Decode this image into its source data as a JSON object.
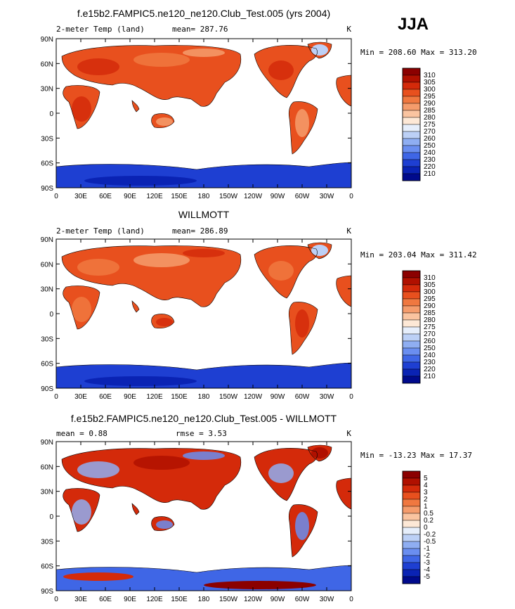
{
  "season": "JJA",
  "chart_data": [
    {
      "type": "heatmap",
      "title": "f.e15b2.FAMPIC5.ne120_ne120.Club_Test.005 (yrs 2004)",
      "left_label": "2-meter Temp (land)",
      "center_label": "mean= 287.76",
      "right_label": "K",
      "stats": "Min = 208.60 Max = 313.20",
      "x_ticks": [
        "0",
        "30E",
        "60E",
        "90E",
        "120E",
        "150E",
        "180",
        "150W",
        "120W",
        "90W",
        "60W",
        "30W",
        "0"
      ],
      "y_ticks": [
        "90N",
        "60N",
        "30N",
        "0",
        "30S",
        "60S",
        "90S"
      ],
      "colorbar": {
        "labels": [
          "310",
          "305",
          "300",
          "295",
          "290",
          "285",
          "280",
          "275",
          "270",
          "260",
          "250",
          "240",
          "230",
          "220",
          "210"
        ],
        "colors": [
          "#8b0000",
          "#b01000",
          "#d42a0a",
          "#e8501e",
          "#f07840",
          "#f59c6c",
          "#fac4a0",
          "#fde8d6",
          "#e6eefb",
          "#bcd0f6",
          "#8faef2",
          "#6a8ef0",
          "#3f66e6",
          "#1e3fd2",
          "#0a23b4",
          "#000a8c"
        ]
      }
    },
    {
      "type": "heatmap",
      "title": "WILLMOTT",
      "left_label": "2-meter Temp (land)",
      "center_label": "mean= 286.89",
      "right_label": "K",
      "stats": "Min = 203.04 Max = 311.42",
      "x_ticks": [
        "0",
        "30E",
        "60E",
        "90E",
        "120E",
        "150E",
        "180",
        "150W",
        "120W",
        "90W",
        "60W",
        "30W",
        "0"
      ],
      "y_ticks": [
        "90N",
        "60N",
        "30N",
        "0",
        "30S",
        "60S",
        "90S"
      ],
      "colorbar": {
        "labels": [
          "310",
          "305",
          "300",
          "295",
          "290",
          "285",
          "280",
          "275",
          "270",
          "260",
          "250",
          "240",
          "230",
          "220",
          "210"
        ],
        "colors": [
          "#8b0000",
          "#b01000",
          "#d42a0a",
          "#e8501e",
          "#f07840",
          "#f59c6c",
          "#fac4a0",
          "#fde8d6",
          "#e6eefb",
          "#bcd0f6",
          "#8faef2",
          "#6a8ef0",
          "#3f66e6",
          "#1e3fd2",
          "#0a23b4",
          "#000a8c"
        ]
      }
    },
    {
      "type": "heatmap",
      "title": "f.e15b2.FAMPIC5.ne120_ne120.Club_Test.005 - WILLMOTT",
      "left_label": "mean =    0.88",
      "center_label": "rmse =    3.53",
      "right_label": "K",
      "stats": "Min = -13.23 Max =  17.37",
      "x_ticks": [
        "0",
        "30E",
        "60E",
        "90E",
        "120E",
        "150E",
        "180",
        "150W",
        "120W",
        "90W",
        "60W",
        "30W",
        "0"
      ],
      "y_ticks": [
        "90N",
        "60N",
        "30N",
        "0",
        "30S",
        "60S",
        "90S"
      ],
      "colorbar": {
        "labels": [
          "5",
          "4",
          "3",
          "2",
          "1",
          "0.5",
          "0.2",
          "0",
          "-0.2",
          "-0.5",
          "-1",
          "-2",
          "-3",
          "-4",
          "-5"
        ],
        "colors": [
          "#8b0000",
          "#b01000",
          "#d42a0a",
          "#e8501e",
          "#f07840",
          "#f59c6c",
          "#fac4a0",
          "#fde8d6",
          "#e6eefb",
          "#bcd0f6",
          "#8faef2",
          "#6a8ef0",
          "#3f66e6",
          "#1e3fd2",
          "#0a23b4",
          "#000a8c"
        ]
      }
    }
  ]
}
